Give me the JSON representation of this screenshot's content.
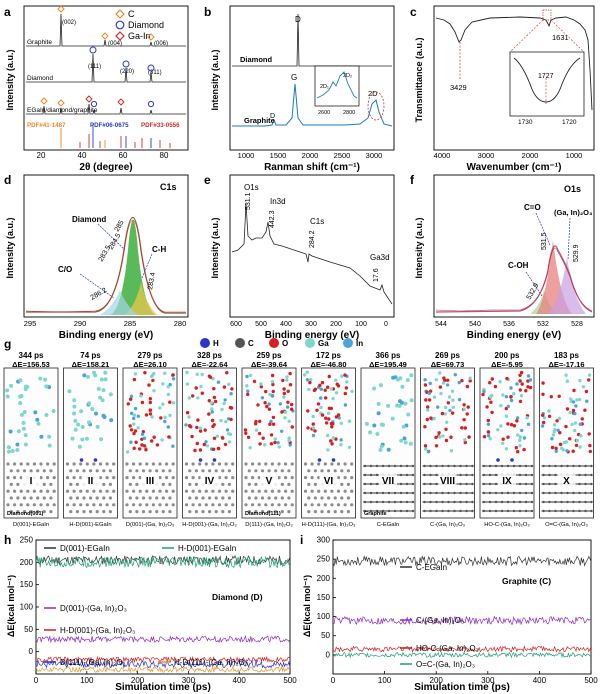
{
  "panels": {
    "a": {
      "letter": "a",
      "ylabel": "Intensity (a.u.)",
      "xlabel": "2θ (degree)",
      "xticks": [
        "20",
        "40",
        "60",
        "80"
      ],
      "legend": [
        {
          "label": "C",
          "color": "#e8882a"
        },
        {
          "label": "Diamond",
          "color": "#2a3cc8"
        },
        {
          "label": "Ga-In",
          "color": "#c8302a"
        }
      ],
      "traces": [
        "Graphite",
        "Diamond",
        "EGaIn/diamond/graphite"
      ],
      "peaks": [
        "(002)",
        "(004)",
        "(006)",
        "(111)",
        "(220)",
        "(311)"
      ],
      "pdf_cards": [
        {
          "label": "PDF#41-1487",
          "color": "#e8882a"
        },
        {
          "label": "PDF#06-0675",
          "color": "#2a3cc8"
        },
        {
          "label": "PDF#33-0556",
          "color": "#c8302a"
        }
      ]
    },
    "b": {
      "letter": "b",
      "ylabel": "Intensity (a.u.)",
      "xlabel": "Ranman shift (cm⁻¹)",
      "xticks": [
        "1000",
        "1500",
        "2000",
        "2500",
        "3000"
      ],
      "traces": [
        "Diamond",
        "Graphite"
      ],
      "peaks": [
        "D",
        "G",
        "D",
        "2D"
      ],
      "inset": {
        "peaks": [
          "2D₁",
          "2D₂"
        ],
        "xticks": [
          "2600",
          "2800"
        ]
      }
    },
    "c": {
      "letter": "c",
      "ylabel": "Transmittance (a.u.)",
      "xlabel": "Wavenumber (cm⁻¹)",
      "xticks": [
        "4000",
        "3000",
        "2000",
        "1000"
      ],
      "peaks": [
        "3429",
        "1631"
      ],
      "inset": {
        "peak": "1727",
        "xticks": [
          "1730",
          "1720"
        ]
      }
    },
    "d": {
      "letter": "d",
      "title": "C1s",
      "ylabel": "Intensity (a.u.)",
      "xlabel": "Binding energy (eV)",
      "xticks": [
        "295",
        "290",
        "285",
        "280"
      ],
      "labels": [
        "Diamond",
        "C-H",
        "C/O"
      ],
      "peaks": [
        "285",
        "284.5",
        "283.5",
        "283.4",
        "286.2"
      ]
    },
    "e": {
      "letter": "e",
      "ylabel": "Intensity (a.u.)",
      "xlabel": "Binding energy (eV)",
      "xticks": [
        "600",
        "500",
        "400",
        "300",
        "200",
        "100",
        "0"
      ],
      "peaks": [
        {
          "label": "O1s",
          "value": "531.1"
        },
        {
          "label": "In3d",
          "value": "442.3"
        },
        {
          "label": "C1s",
          "value": "284.2"
        },
        {
          "label": "Ga3d",
          "value": "17.6"
        }
      ]
    },
    "f": {
      "letter": "f",
      "title": "O1s",
      "ylabel": "Intensity (a.u.)",
      "xlabel": "Binding energy (eV)",
      "xticks": [
        "544",
        "540",
        "536",
        "532",
        "528"
      ],
      "labels": [
        "C=O",
        "(Ga, In)₂O₃",
        "C-OH"
      ],
      "peaks": [
        "531.5",
        "529.9",
        "532.9"
      ]
    },
    "g": {
      "letter": "g",
      "atom_legend": [
        {
          "label": "H",
          "color": "#2b36c9"
        },
        {
          "label": "C",
          "color": "#555555"
        },
        {
          "label": "O",
          "color": "#d42020"
        },
        {
          "label": "Ga",
          "color": "#7fd6cd"
        },
        {
          "label": "In",
          "color": "#4aa4dc"
        }
      ],
      "delta_e_symbol": "ΔE",
      "models": [
        {
          "time": "344 ps",
          "delta_e": "156.53",
          "numeral": "I",
          "name": "D(001)-EGaIn",
          "substrate": "Diamond(001)"
        },
        {
          "time": "74 ps",
          "delta_e": "158.21",
          "numeral": "II",
          "name": "H-D(001)-EGaIn",
          "substrate": ""
        },
        {
          "time": "279 ps",
          "delta_e": "26.10",
          "numeral": "III",
          "name": "D(001)-(Ga, In)₂O₃",
          "substrate": ""
        },
        {
          "time": "328 ps",
          "delta_e": "-22.64",
          "numeral": "IV",
          "name": "H-D(001)-(Ga, In)₂O₃",
          "substrate": ""
        },
        {
          "time": "259 ps",
          "delta_e": "-39.64",
          "numeral": "V",
          "name": "D(111)-(Ga, In)₂O₃",
          "substrate": "Diamond(111)"
        },
        {
          "time": "172 ps",
          "delta_e": "-46.80",
          "numeral": "VI",
          "name": "H-D(111)-(Ga, In)₂O₃",
          "substrate": ""
        },
        {
          "time": "366 ps",
          "delta_e": "195.49",
          "numeral": "VII",
          "name": "C-EGaIn",
          "substrate": "Graphite"
        },
        {
          "time": "269 ps",
          "delta_e": "69.73",
          "numeral": "VIII",
          "name": "C-(Ga, In)₂O₃",
          "substrate": ""
        },
        {
          "time": "200 ps",
          "delta_e": "-5.95",
          "numeral": "IX",
          "name": "HO-C-(Ga, In)₂O₃",
          "substrate": ""
        },
        {
          "time": "183 ps",
          "delta_e": "-17.16",
          "numeral": "X",
          "name": "O=C-(Ga, In)₂O₃",
          "substrate": ""
        }
      ]
    }
  },
  "chart_data": [
    {
      "type": "line",
      "panel": "h",
      "title": "Diamond (D)",
      "xlabel": "Simulation time (ps)",
      "ylabel": "ΔE(kcal mol⁻¹)",
      "xlim": [
        0,
        500
      ],
      "ylim": [
        -50,
        250
      ],
      "xticks": [
        "0",
        "100",
        "200",
        "300",
        "400",
        "500"
      ],
      "yticks": [
        "0",
        "50",
        "100",
        "150",
        "200",
        "250"
      ],
      "series": [
        {
          "name": "D(001)-EGaIn",
          "color": "#333333",
          "mean": 205,
          "noise": 10
        },
        {
          "name": "H-D(001)-EGaIn",
          "color": "#1e9e76",
          "mean": 200,
          "noise": 12
        },
        {
          "name": "D(001)-(Ga, In)₂O₃",
          "color": "#8a2bc9",
          "mean": 28,
          "noise": 7
        },
        {
          "name": "H-D(001)-(Ga, In)₂O₃",
          "color": "#d42020",
          "mean": -18,
          "noise": 6
        },
        {
          "name": "D(111)-(Ga, In)₂O₃",
          "color": "#2b36c9",
          "mean": -28,
          "noise": 8
        },
        {
          "name": "H-D(111)-(Ga, In)₂O₃",
          "color": "#e8962a",
          "mean": -40,
          "noise": 6
        }
      ]
    },
    {
      "type": "line",
      "panel": "i",
      "title": "Graphite (C)",
      "xlabel": "Simulation time (ps)",
      "ylabel": "ΔE(kcal mol⁻¹)",
      "xlim": [
        0,
        500
      ],
      "ylim": [
        -50,
        300
      ],
      "xticks": [
        "0",
        "100",
        "200",
        "300",
        "400",
        "500"
      ],
      "yticks": [
        "0",
        "50",
        "100",
        "150",
        "200",
        "250",
        "300"
      ],
      "series": [
        {
          "name": "C-EGaIn",
          "color": "#333333",
          "mean": 245,
          "noise": 12
        },
        {
          "name": "C-(Ga, In)₂O₃",
          "color": "#8a2bc9",
          "mean": 90,
          "noise": 10
        },
        {
          "name": "HO-C-(Ga, In)₂O₃",
          "color": "#d42020",
          "mean": 15,
          "noise": 7
        },
        {
          "name": "O=C-(Ga, In)₂O₃",
          "color": "#1e9e76",
          "mean": 0,
          "noise": 6
        }
      ]
    }
  ]
}
